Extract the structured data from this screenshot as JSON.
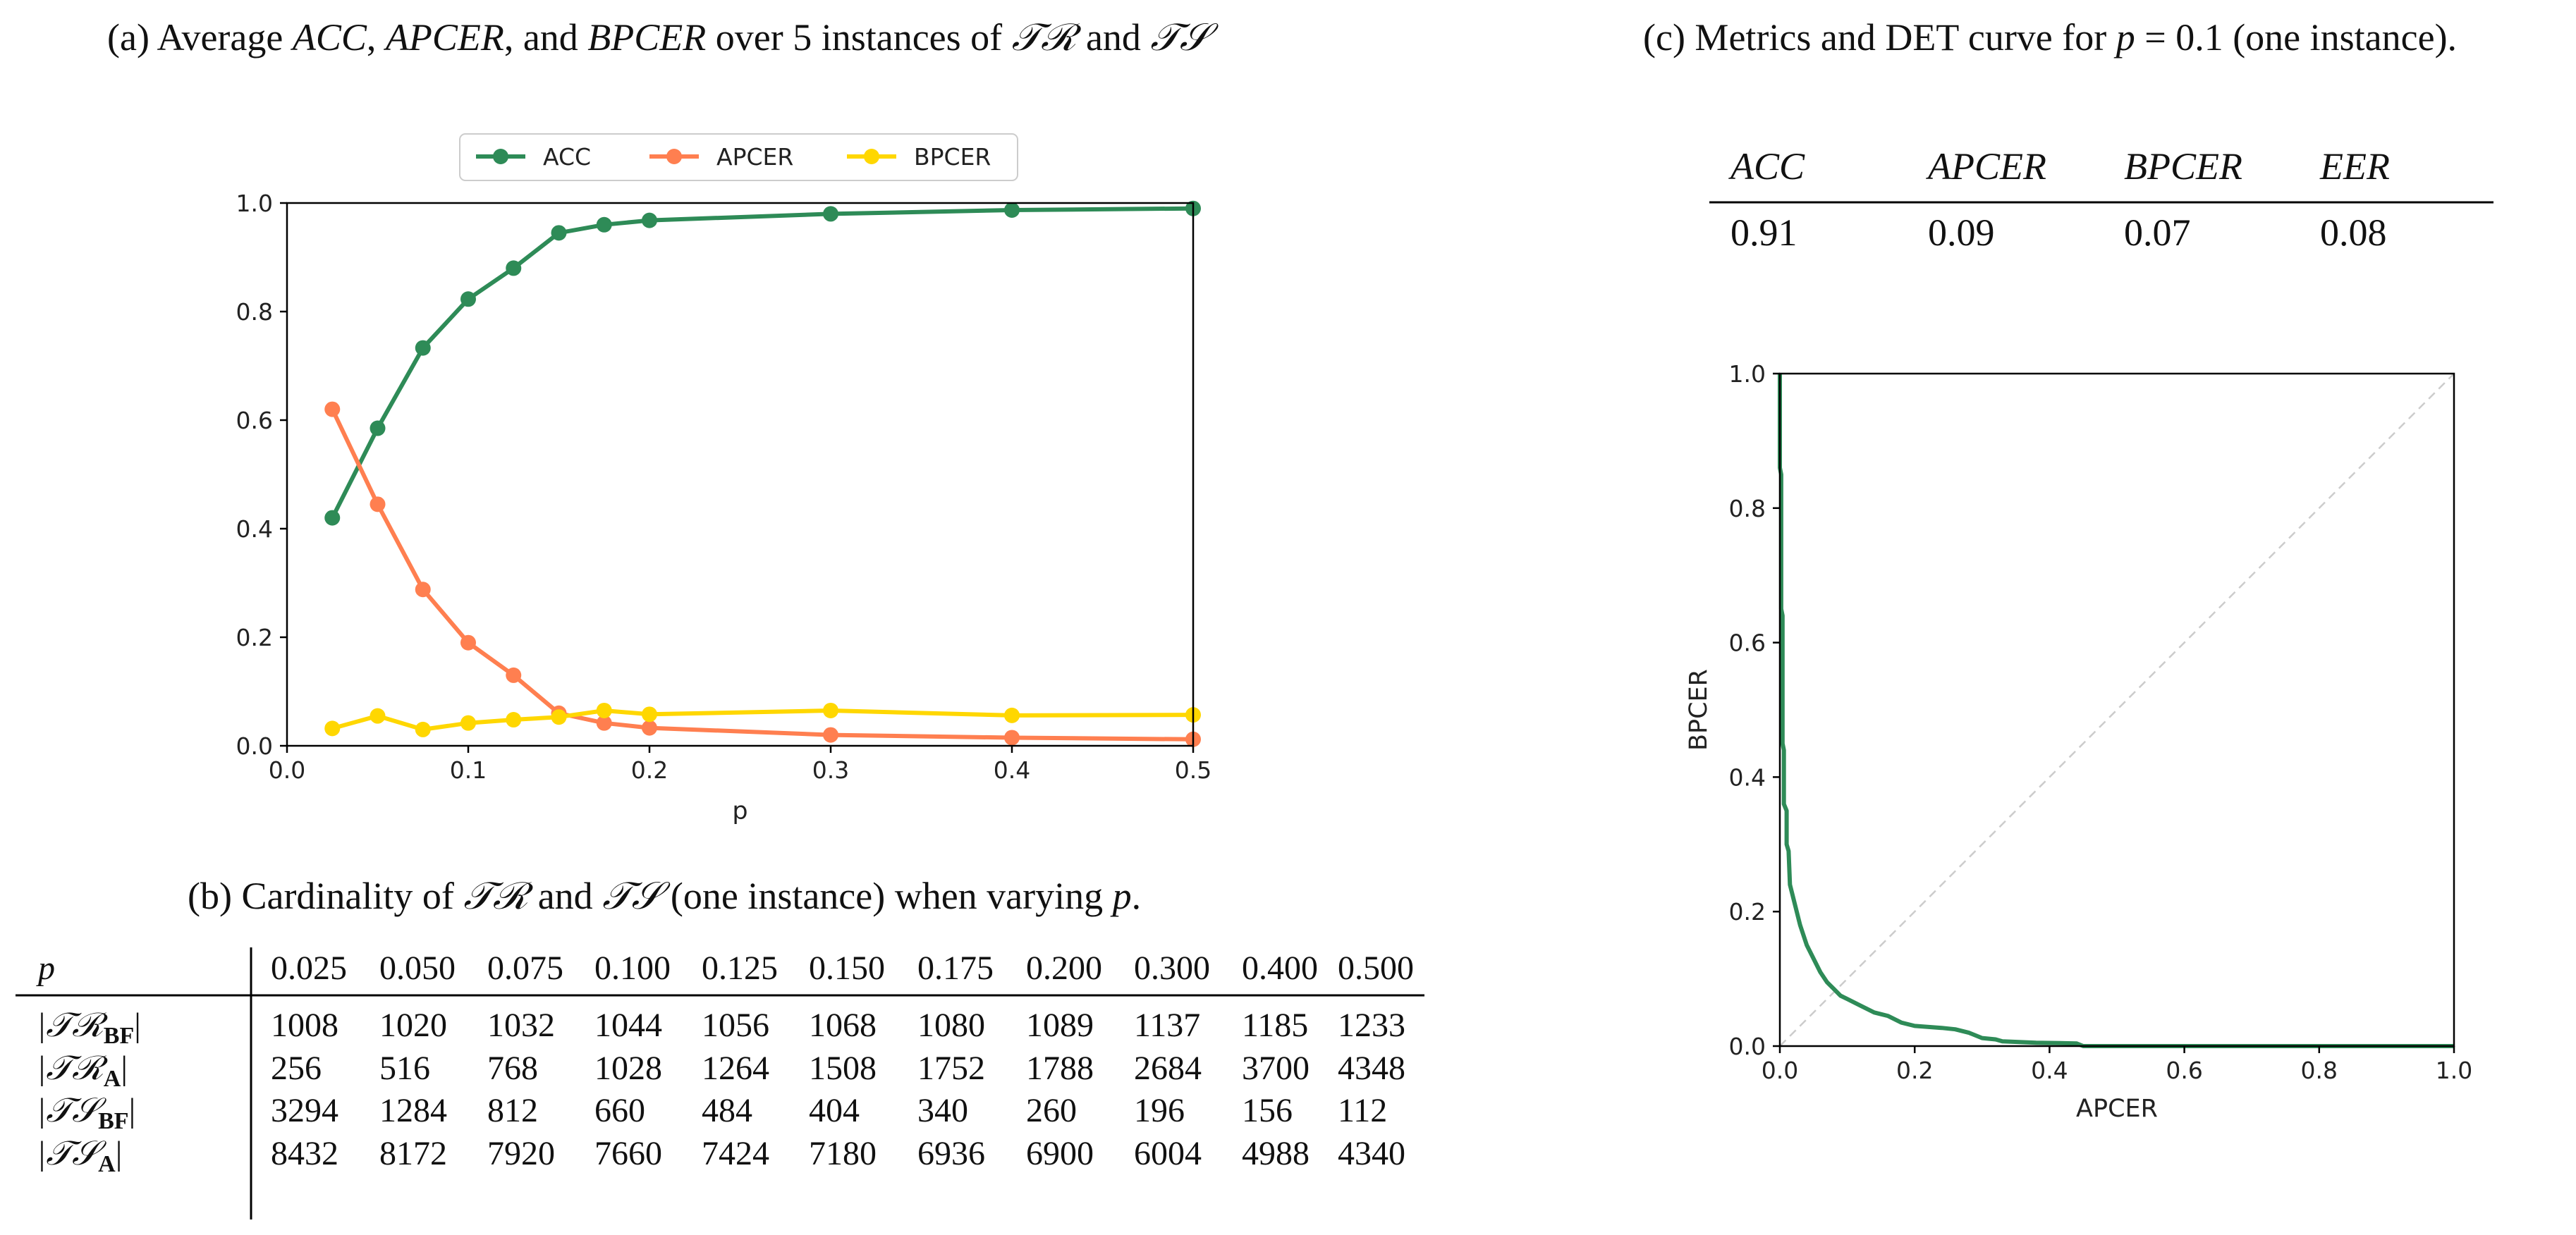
{
  "captions": {
    "a_prefix": "(a) Average ",
    "a_acc": "ACC",
    "a_sep1": ", ",
    "a_apcer": "APCER",
    "a_sep2": ", and ",
    "a_bpcer": "BPCER",
    "a_over": " over 5 instances of ",
    "a_tr": "𝒯ℛ",
    "a_and": " and ",
    "a_ts": "𝒯𝒮",
    "b_prefix": "(b) Cardinality of ",
    "b_tr": "𝒯ℛ",
    "b_and": " and ",
    "b_ts": "𝒯𝒮",
    "b_mid": " (one instance) when varying ",
    "b_p": "p",
    "b_end": ".",
    "c_prefix": "(c) Metrics and DET curve for ",
    "c_p": "p",
    "c_eq": " = 0.1 (one instance)."
  },
  "chart_data": [
    {
      "type": "line",
      "id": "average-metrics",
      "xlabel": "p",
      "ylabel": "",
      "xlim": [
        0.0,
        0.5
      ],
      "ylim": [
        0.0,
        1.0
      ],
      "xticks": [
        "0.0",
        "0.1",
        "0.2",
        "0.3",
        "0.4",
        "0.5"
      ],
      "yticks": [
        "0.0",
        "0.2",
        "0.4",
        "0.6",
        "0.8",
        "1.0"
      ],
      "legend_position": "top-center",
      "x": [
        0.025,
        0.05,
        0.075,
        0.1,
        0.125,
        0.15,
        0.175,
        0.2,
        0.3,
        0.4,
        0.5
      ],
      "series": [
        {
          "name": "ACC",
          "color": "#2e8b57",
          "values": [
            0.42,
            0.585,
            0.733,
            0.823,
            0.88,
            0.945,
            0.96,
            0.968,
            0.98,
            0.987,
            0.99
          ]
        },
        {
          "name": "APCER",
          "color": "#ff7f50",
          "values": [
            0.62,
            0.445,
            0.288,
            0.19,
            0.13,
            0.06,
            0.042,
            0.033,
            0.02,
            0.015,
            0.012
          ]
        },
        {
          "name": "BPCER",
          "color": "#ffd700",
          "values": [
            0.032,
            0.055,
            0.03,
            0.042,
            0.048,
            0.053,
            0.065,
            0.058,
            0.065,
            0.056,
            0.057
          ]
        }
      ]
    },
    {
      "type": "table",
      "id": "cardinality",
      "header_label": "p",
      "columns": [
        "0.025",
        "0.050",
        "0.075",
        "0.100",
        "0.125",
        "0.150",
        "0.175",
        "0.200",
        "0.300",
        "0.400",
        "0.500"
      ],
      "rows": [
        {
          "label": "|𝒯ℛ",
          "sub": "BF",
          "close": "|",
          "values": [
            "1008",
            "1020",
            "1032",
            "1044",
            "1056",
            "1068",
            "1080",
            "1089",
            "1137",
            "1185",
            "1233"
          ]
        },
        {
          "label": "|𝒯ℛ",
          "sub": "A",
          "close": "|",
          "values": [
            "256",
            "516",
            "768",
            "1028",
            "1264",
            "1508",
            "1752",
            "1788",
            "2684",
            "3700",
            "4348"
          ]
        },
        {
          "label": "|𝒯𝒮",
          "sub": "BF",
          "close": "|",
          "values": [
            "3294",
            "1284",
            "812",
            "660",
            "484",
            "404",
            "340",
            "260",
            "196",
            "156",
            "112"
          ]
        },
        {
          "label": "|𝒯𝒮",
          "sub": "A",
          "close": "|",
          "values": [
            "8432",
            "8172",
            "7920",
            "7660",
            "7424",
            "7180",
            "6936",
            "6900",
            "6004",
            "4988",
            "4340"
          ]
        }
      ]
    },
    {
      "type": "table",
      "id": "metrics",
      "columns": [
        "ACC",
        "APCER",
        "BPCER",
        "EER"
      ],
      "values": [
        "0.91",
        "0.09",
        "0.07",
        "0.08"
      ]
    },
    {
      "type": "line",
      "id": "det-curve",
      "xlabel": "APCER",
      "ylabel": "BPCER",
      "xlim": [
        0.0,
        1.0
      ],
      "ylim": [
        0.0,
        1.0
      ],
      "xticks": [
        "0.0",
        "0.2",
        "0.4",
        "0.6",
        "0.8",
        "1.0"
      ],
      "yticks": [
        "0.0",
        "0.2",
        "0.4",
        "0.6",
        "0.8",
        "1.0"
      ],
      "diagonal_color": "#cccccc",
      "series": [
        {
          "name": "DET",
          "color": "#2e8b57",
          "points": [
            [
              0.0,
              1.0
            ],
            [
              0.0,
              0.86
            ],
            [
              0.002,
              0.85
            ],
            [
              0.002,
              0.65
            ],
            [
              0.004,
              0.64
            ],
            [
              0.004,
              0.45
            ],
            [
              0.006,
              0.44
            ],
            [
              0.006,
              0.36
            ],
            [
              0.01,
              0.35
            ],
            [
              0.01,
              0.3
            ],
            [
              0.013,
              0.29
            ],
            [
              0.015,
              0.24
            ],
            [
              0.02,
              0.22
            ],
            [
              0.025,
              0.2
            ],
            [
              0.03,
              0.18
            ],
            [
              0.04,
              0.15
            ],
            [
              0.05,
              0.13
            ],
            [
              0.06,
              0.11
            ],
            [
              0.07,
              0.095
            ],
            [
              0.08,
              0.085
            ],
            [
              0.09,
              0.075
            ],
            [
              0.1,
              0.07
            ],
            [
              0.12,
              0.06
            ],
            [
              0.14,
              0.05
            ],
            [
              0.16,
              0.045
            ],
            [
              0.18,
              0.035
            ],
            [
              0.2,
              0.03
            ],
            [
              0.24,
              0.027
            ],
            [
              0.26,
              0.025
            ],
            [
              0.28,
              0.02
            ],
            [
              0.3,
              0.012
            ],
            [
              0.32,
              0.01
            ],
            [
              0.33,
              0.007
            ],
            [
              0.38,
              0.005
            ],
            [
              0.44,
              0.004
            ],
            [
              0.45,
              0.0
            ],
            [
              1.0,
              0.0
            ]
          ]
        }
      ]
    }
  ]
}
